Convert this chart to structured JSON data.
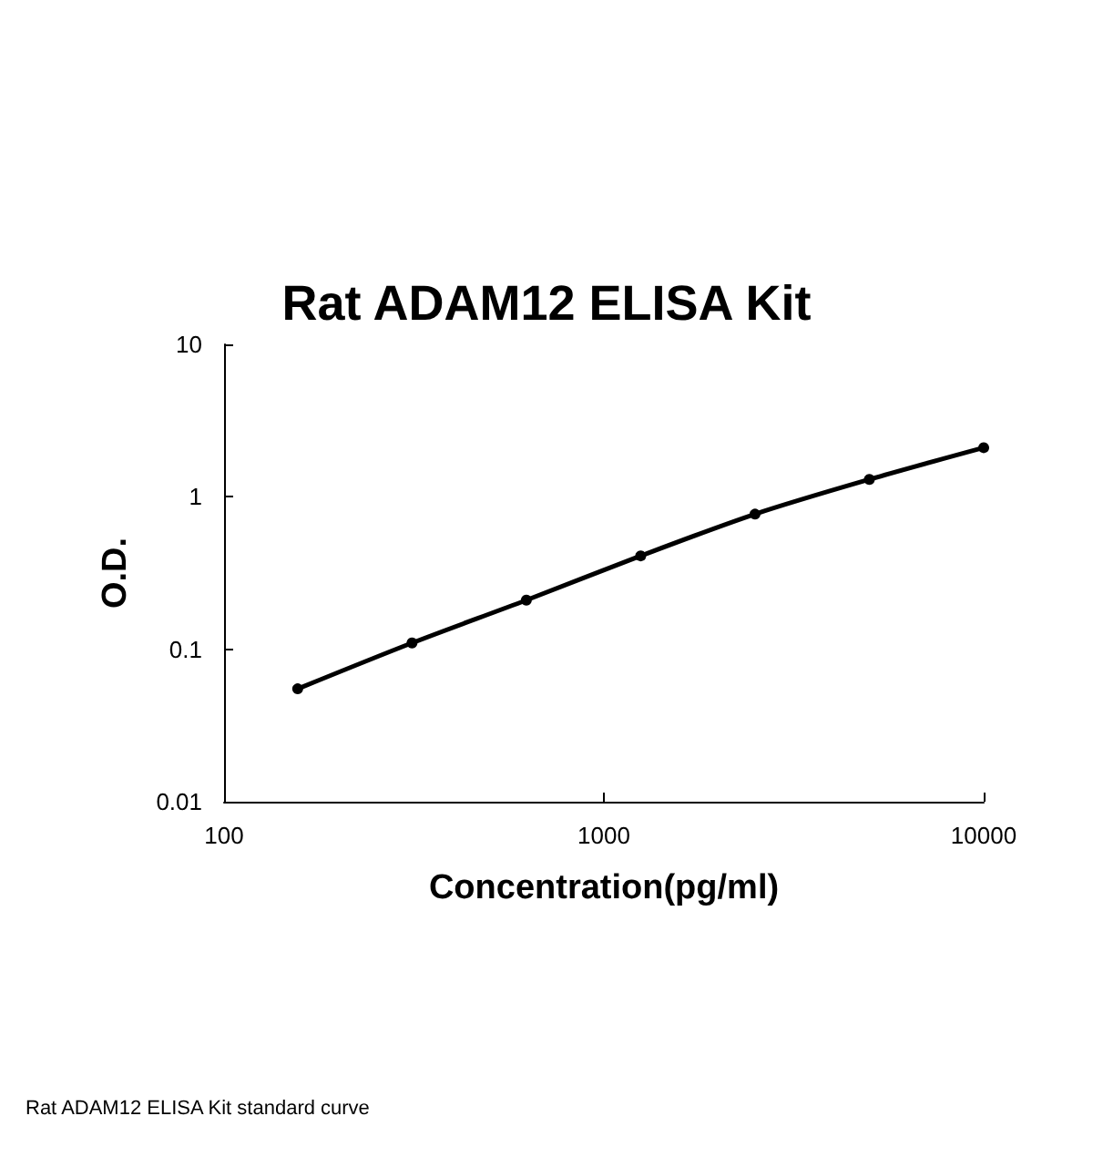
{
  "chart_data": {
    "type": "line",
    "title": "Rat ADAM12 ELISA Kit",
    "xlabel": "Concentration(pg/ml)",
    "ylabel": "O.D.",
    "annotations": [
      "Rat ADAM12 ELISA Kit standard curve"
    ],
    "x": [
      156.25,
      312.5,
      625,
      1250,
      2500,
      5000,
      10000
    ],
    "series": [
      {
        "color": "#000000",
        "values": [
          0.055,
          0.11,
          0.21,
          0.41,
          0.77,
          1.3,
          2.1
        ]
      }
    ],
    "xlim": [
      100,
      10000
    ],
    "xticks": [
      100,
      1000,
      10000
    ],
    "ylim": [
      0.01,
      10
    ],
    "yticks": [
      0.01,
      0.1,
      1,
      10
    ],
    "log": "xy",
    "grid": false,
    "marker": "circle",
    "line_style": "solid"
  }
}
